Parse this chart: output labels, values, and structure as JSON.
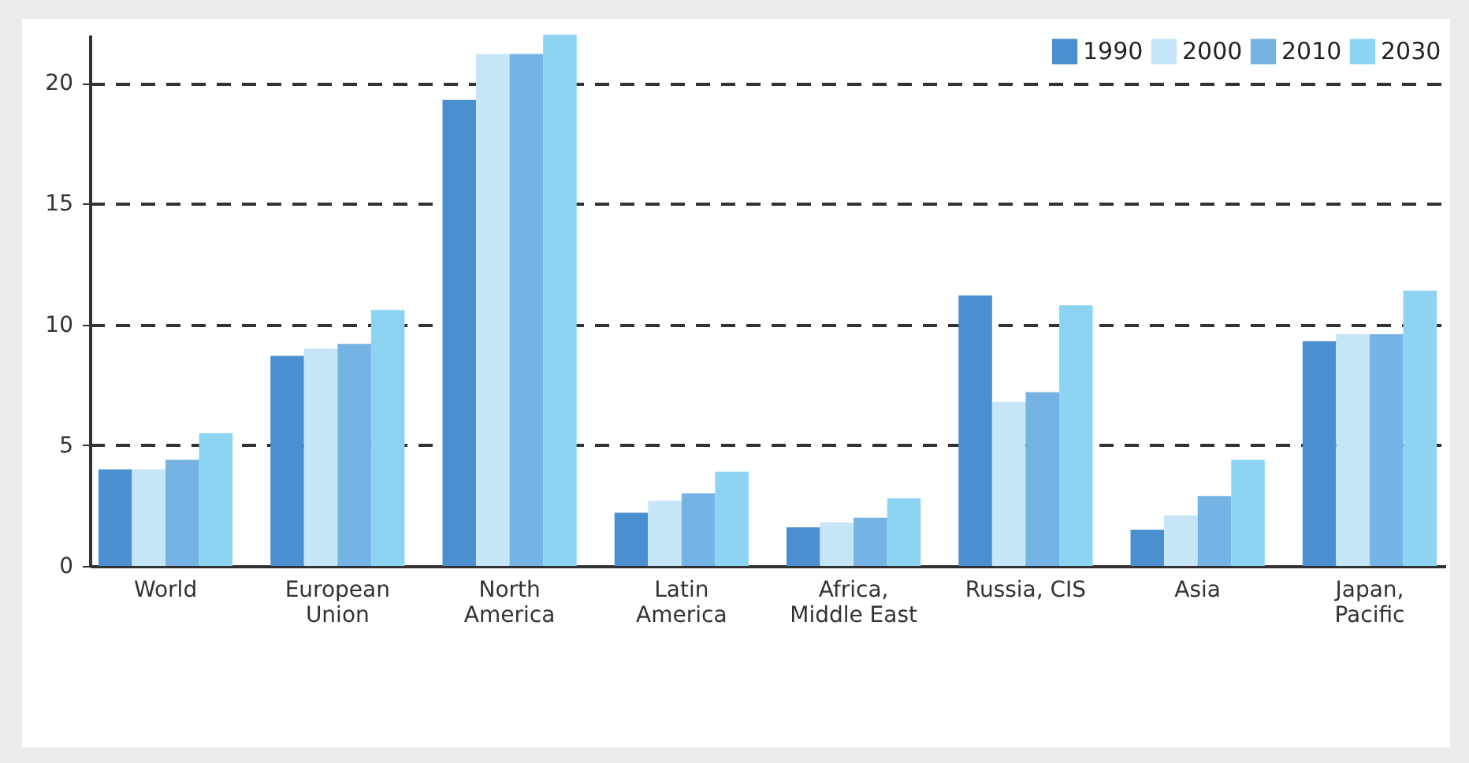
{
  "chart_data": {
    "type": "bar",
    "categories": [
      "World",
      "European Union",
      "North America",
      "Latin America",
      "Africa, Middle East",
      "Russia, CIS",
      "Asia",
      "Japan, Pacific"
    ],
    "series": [
      {
        "name": "1990",
        "color": "#4a8fcf",
        "values": [
          4.0,
          8.7,
          19.3,
          2.2,
          1.6,
          11.2,
          1.5,
          9.3
        ]
      },
      {
        "name": "2000",
        "color": "#c6e6f7",
        "values": [
          4.0,
          9.0,
          21.2,
          2.7,
          1.8,
          6.8,
          2.1,
          9.6
        ]
      },
      {
        "name": "2010",
        "color": "#74b3e3",
        "values": [
          4.4,
          9.2,
          21.2,
          3.0,
          2.0,
          7.2,
          2.9,
          9.6
        ]
      },
      {
        "name": "2030",
        "color": "#8dd4f3",
        "values": [
          5.5,
          10.6,
          22.0,
          3.9,
          2.8,
          10.8,
          4.4,
          11.4
        ]
      }
    ],
    "ylim": [
      0,
      22
    ],
    "yticks": [
      0,
      5,
      10,
      15,
      20
    ],
    "grid": "y",
    "legend": "top right"
  }
}
